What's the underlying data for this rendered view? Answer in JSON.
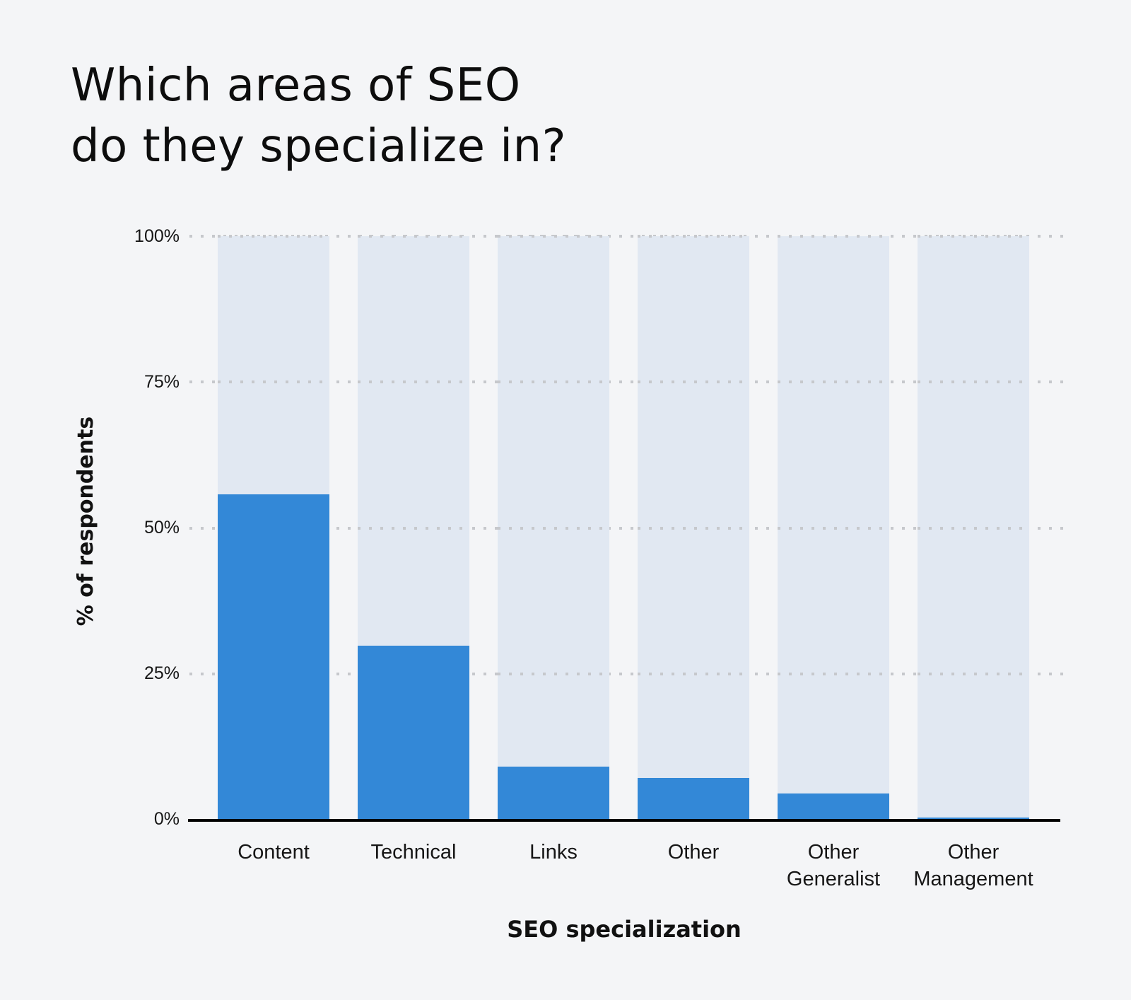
{
  "title": {
    "line1": "Which areas of SEO",
    "line2": "do they specialize in?"
  },
  "axes": {
    "x_title": "SEO specialization",
    "y_title": "% of respondents",
    "y_ticks": [
      "100%",
      "75%",
      "50%",
      "25%",
      "0%"
    ]
  },
  "categories": [
    {
      "line1": "Content",
      "line2": ""
    },
    {
      "line1": "Technical",
      "line2": ""
    },
    {
      "line1": "Links",
      "line2": ""
    },
    {
      "line1": "Other",
      "line2": ""
    },
    {
      "line1": "Other",
      "line2": "Generalist"
    },
    {
      "line1": "Other",
      "line2": "Management"
    }
  ],
  "colors": {
    "bar": "#3388d7",
    "track": "#e1e8f2",
    "background": "#f4f5f7",
    "gridline": "#c6c8cc",
    "axis": "#000000"
  },
  "chart_data": {
    "type": "bar",
    "title": "Which areas of SEO do they specialize in?",
    "categories": [
      "Content",
      "Technical",
      "Links",
      "Other",
      "Other Generalist",
      "Other Management"
    ],
    "values": [
      55.8,
      29.9,
      9.2,
      7.3,
      4.6,
      0.5
    ],
    "xlabel": "SEO specialization",
    "ylabel": "% of respondents",
    "ylim": [
      0,
      100
    ],
    "yticks": [
      0,
      25,
      50,
      75,
      100
    ],
    "ytick_labels": [
      "0%",
      "25%",
      "50%",
      "75%",
      "100%"
    ],
    "grid": "horizontal dotted",
    "background_track": "each bar drawn over a light full-height (100%) track",
    "legend": "none"
  }
}
